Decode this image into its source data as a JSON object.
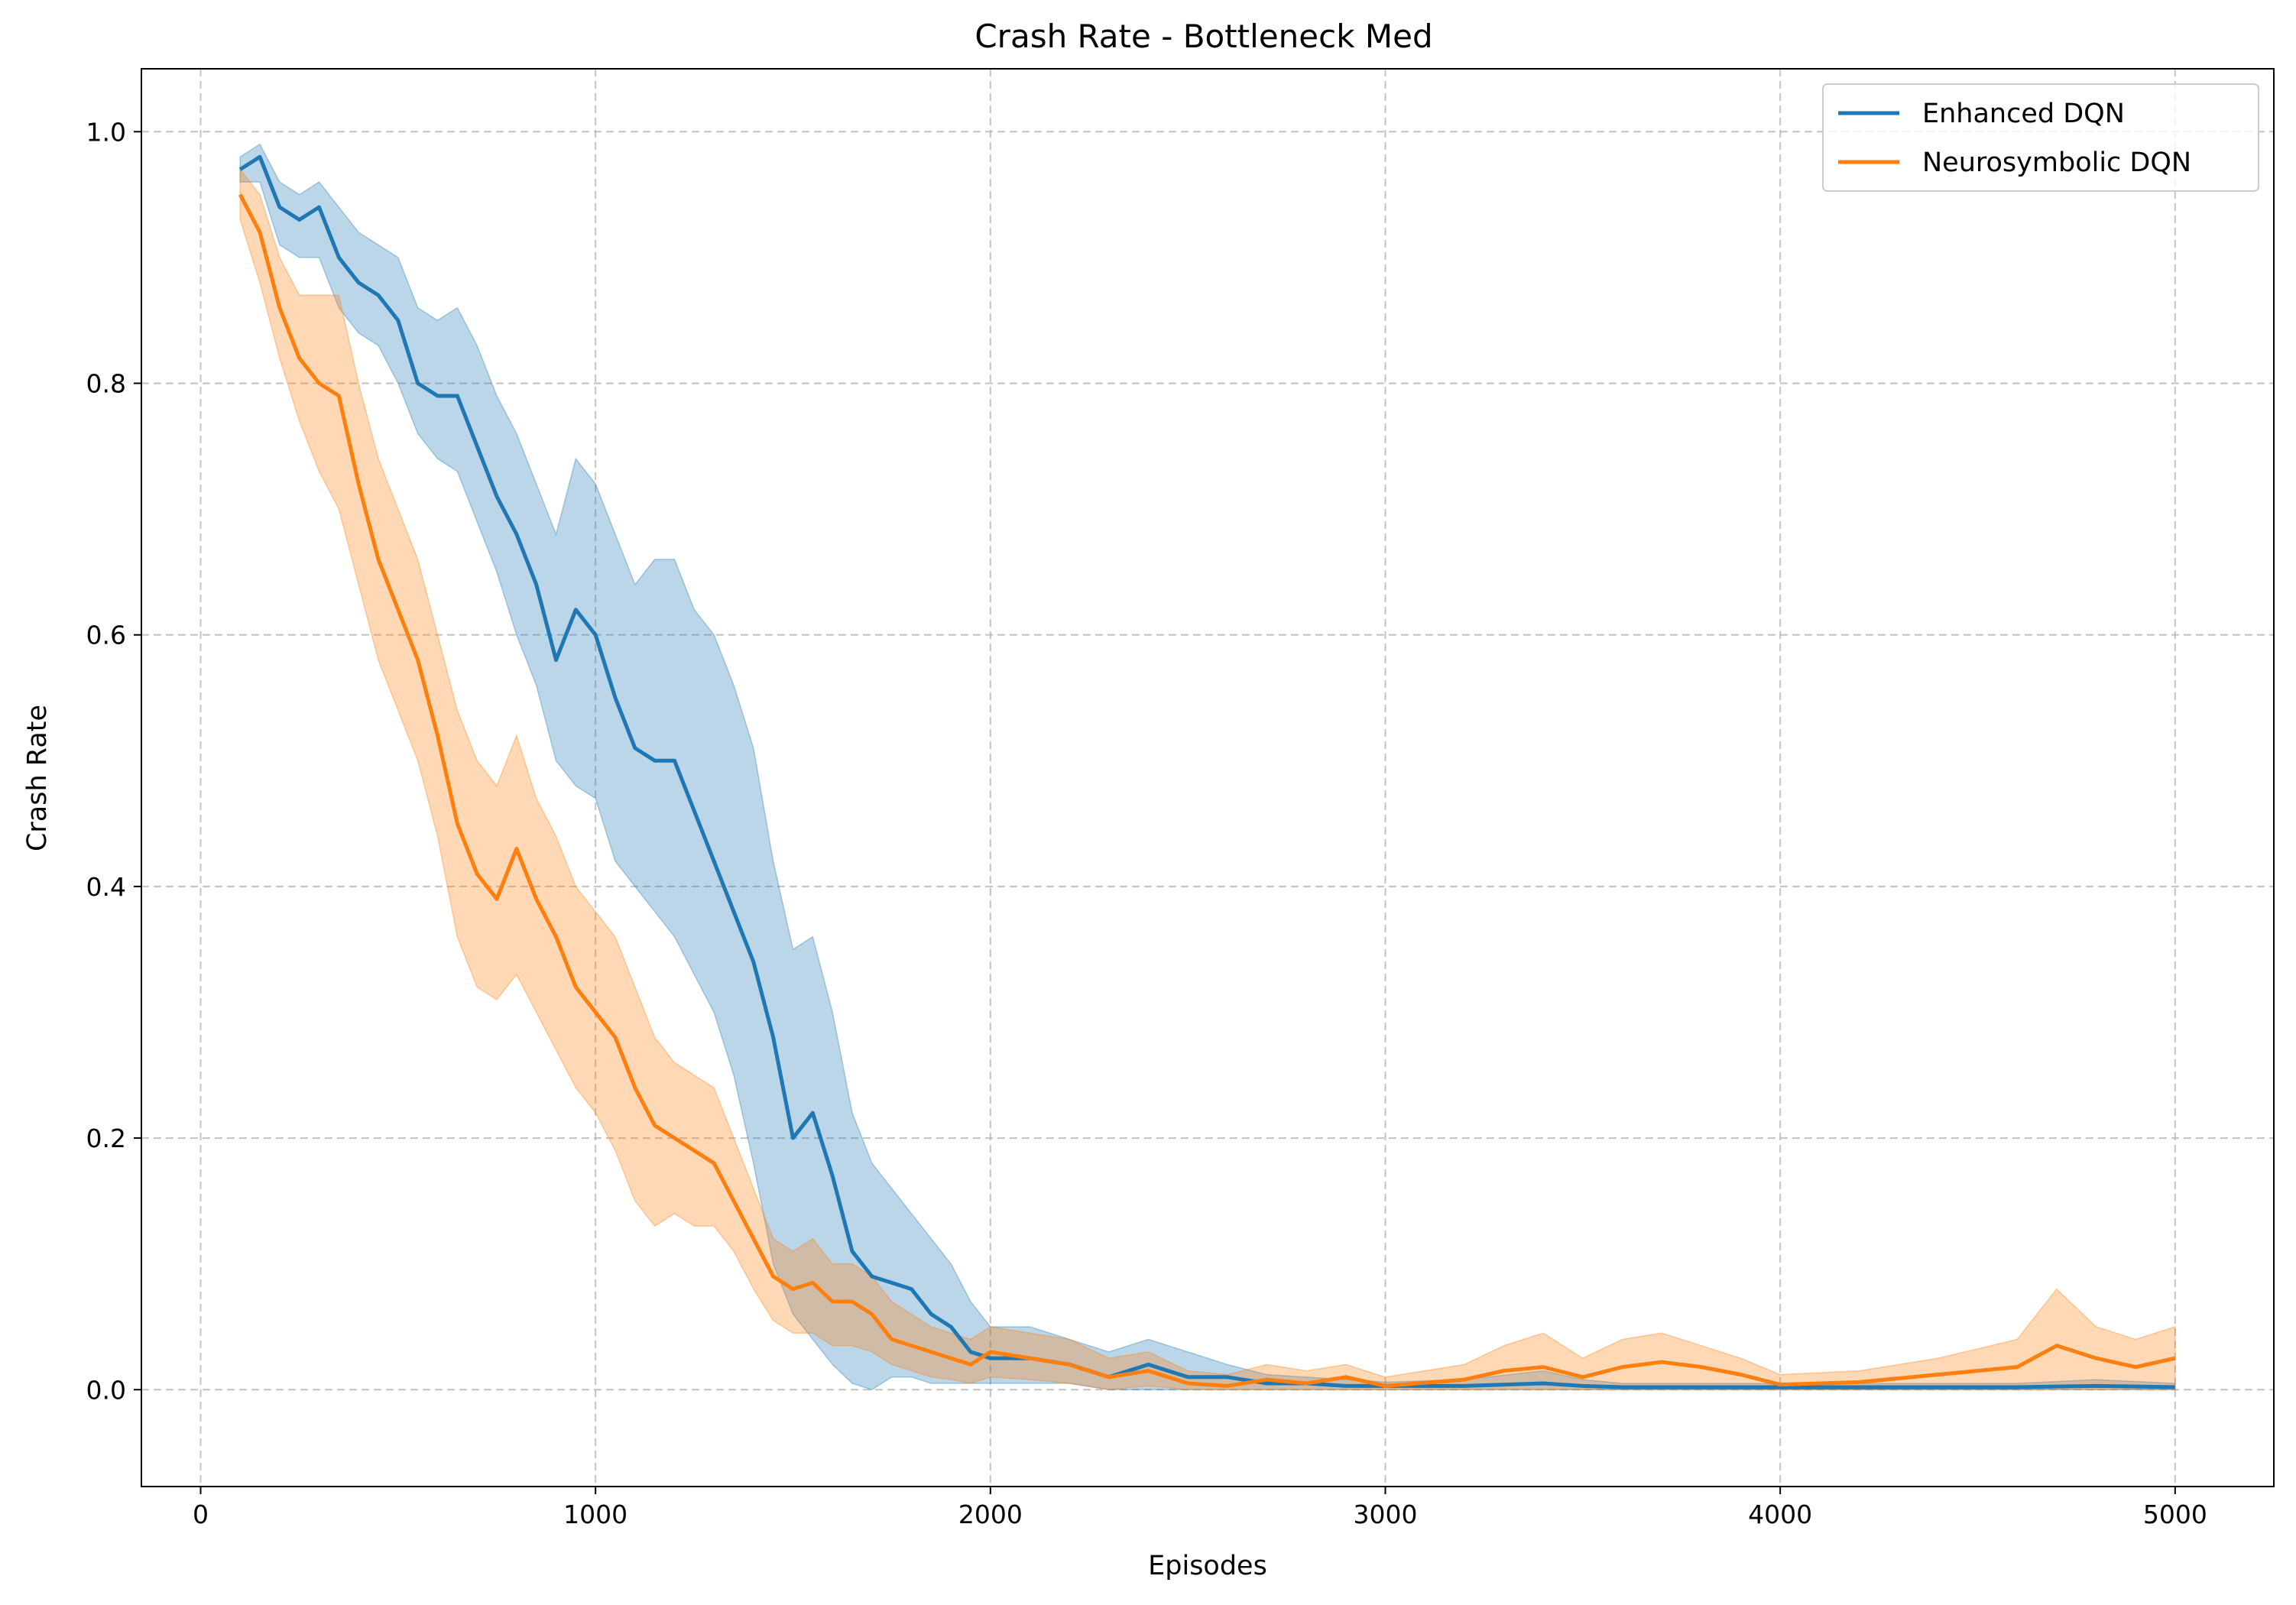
{
  "chart_data": {
    "type": "line",
    "title": "Crash Rate - Bottleneck Med",
    "xlabel": "Episodes",
    "ylabel": "Crash Rate",
    "xlim": [
      -150,
      5250
    ],
    "ylim": [
      -0.077,
      1.05
    ],
    "xticks": [
      0,
      1000,
      2000,
      3000,
      4000,
      5000
    ],
    "xtick_labels": [
      "0",
      "1000",
      "2000",
      "3000",
      "4000",
      "5000"
    ],
    "yticks": [
      0.0,
      0.2,
      0.4,
      0.6,
      0.8,
      1.0
    ],
    "ytick_labels": [
      "0.0",
      "0.2",
      "0.4",
      "0.6",
      "0.8",
      "1.0"
    ],
    "grid": true,
    "legend_position": "top-right",
    "series": [
      {
        "name": "Enhanced DQN",
        "color": "#1f77b4",
        "x": [
          100,
          150,
          200,
          250,
          300,
          350,
          400,
          450,
          500,
          550,
          600,
          650,
          700,
          750,
          800,
          850,
          900,
          950,
          1000,
          1050,
          1100,
          1150,
          1200,
          1250,
          1300,
          1350,
          1400,
          1450,
          1500,
          1550,
          1600,
          1650,
          1700,
          1750,
          1800,
          1850,
          1900,
          1950,
          2000,
          2100,
          2200,
          2300,
          2400,
          2500,
          2600,
          2700,
          2800,
          2900,
          3000,
          3200,
          3400,
          3500,
          3600,
          3800,
          4000,
          4200,
          4400,
          4600,
          4800,
          5000
        ],
        "y": [
          0.97,
          0.98,
          0.94,
          0.93,
          0.94,
          0.9,
          0.88,
          0.87,
          0.85,
          0.8,
          0.79,
          0.79,
          0.75,
          0.71,
          0.68,
          0.64,
          0.58,
          0.62,
          0.6,
          0.55,
          0.51,
          0.5,
          0.5,
          0.46,
          0.42,
          0.38,
          0.34,
          0.28,
          0.2,
          0.22,
          0.17,
          0.11,
          0.09,
          0.085,
          0.08,
          0.06,
          0.05,
          0.03,
          0.025,
          0.025,
          0.02,
          0.01,
          0.02,
          0.01,
          0.01,
          0.005,
          0.005,
          0.003,
          0.003,
          0.003,
          0.005,
          0.003,
          0.002,
          0.002,
          0.002,
          0.002,
          0.002,
          0.002,
          0.003,
          0.002
        ],
        "lower": [
          0.96,
          0.96,
          0.91,
          0.9,
          0.9,
          0.86,
          0.84,
          0.83,
          0.8,
          0.76,
          0.74,
          0.73,
          0.69,
          0.65,
          0.6,
          0.56,
          0.5,
          0.48,
          0.47,
          0.42,
          0.4,
          0.38,
          0.36,
          0.33,
          0.3,
          0.25,
          0.18,
          0.1,
          0.06,
          0.04,
          0.02,
          0.005,
          0.0,
          0.01,
          0.01,
          0.005,
          0.005,
          0.005,
          0.005,
          0.005,
          0.005,
          0.0,
          0.0,
          0.0,
          0.0,
          0.0,
          0.0,
          0.0,
          0.0,
          0.0,
          0.0,
          0.0,
          0.0,
          0.0,
          0.0,
          0.0,
          0.0,
          0.0,
          0.0,
          0.0
        ],
        "upper": [
          0.98,
          0.99,
          0.96,
          0.95,
          0.96,
          0.94,
          0.92,
          0.91,
          0.9,
          0.86,
          0.85,
          0.86,
          0.83,
          0.79,
          0.76,
          0.72,
          0.68,
          0.74,
          0.72,
          0.68,
          0.64,
          0.66,
          0.66,
          0.62,
          0.6,
          0.56,
          0.51,
          0.42,
          0.35,
          0.36,
          0.3,
          0.22,
          0.18,
          0.16,
          0.14,
          0.12,
          0.1,
          0.07,
          0.05,
          0.05,
          0.04,
          0.03,
          0.04,
          0.03,
          0.02,
          0.012,
          0.01,
          0.008,
          0.006,
          0.008,
          0.015,
          0.008,
          0.005,
          0.005,
          0.005,
          0.005,
          0.005,
          0.005,
          0.008,
          0.005
        ]
      },
      {
        "name": "Neurosymbolic DQN",
        "color": "#ff7f0e",
        "x": [
          100,
          150,
          200,
          250,
          300,
          350,
          400,
          450,
          500,
          550,
          600,
          650,
          700,
          750,
          800,
          850,
          900,
          950,
          1000,
          1050,
          1100,
          1150,
          1200,
          1250,
          1300,
          1350,
          1400,
          1450,
          1500,
          1550,
          1600,
          1650,
          1700,
          1750,
          1800,
          1850,
          1900,
          1950,
          2000,
          2100,
          2200,
          2300,
          2400,
          2500,
          2600,
          2700,
          2800,
          2900,
          3000,
          3200,
          3300,
          3400,
          3500,
          3600,
          3700,
          3800,
          3900,
          4000,
          4200,
          4400,
          4600,
          4700,
          4800,
          4900,
          5000
        ],
        "y": [
          0.95,
          0.92,
          0.86,
          0.82,
          0.8,
          0.79,
          0.72,
          0.66,
          0.62,
          0.58,
          0.52,
          0.45,
          0.41,
          0.39,
          0.43,
          0.39,
          0.36,
          0.32,
          0.3,
          0.28,
          0.24,
          0.21,
          0.2,
          0.19,
          0.18,
          0.15,
          0.12,
          0.09,
          0.08,
          0.085,
          0.07,
          0.07,
          0.06,
          0.04,
          0.035,
          0.03,
          0.025,
          0.02,
          0.03,
          0.025,
          0.02,
          0.01,
          0.015,
          0.005,
          0.003,
          0.008,
          0.005,
          0.01,
          0.003,
          0.008,
          0.015,
          0.018,
          0.01,
          0.018,
          0.022,
          0.018,
          0.012,
          0.004,
          0.006,
          0.012,
          0.018,
          0.035,
          0.025,
          0.018,
          0.025
        ],
        "lower": [
          0.93,
          0.88,
          0.82,
          0.77,
          0.73,
          0.7,
          0.64,
          0.58,
          0.54,
          0.5,
          0.44,
          0.36,
          0.32,
          0.31,
          0.33,
          0.3,
          0.27,
          0.24,
          0.22,
          0.19,
          0.15,
          0.13,
          0.14,
          0.13,
          0.13,
          0.11,
          0.08,
          0.055,
          0.045,
          0.045,
          0.035,
          0.035,
          0.03,
          0.02,
          0.015,
          0.01,
          0.008,
          0.005,
          0.01,
          0.008,
          0.005,
          0.0,
          0.003,
          0.0,
          0.0,
          0.0,
          0.0,
          0.0,
          0.0,
          0.0,
          0.0,
          0.0,
          0.0,
          0.0,
          0.0,
          0.0,
          0.0,
          0.0,
          0.0,
          0.0,
          0.0,
          0.0,
          0.0,
          0.0,
          0.0
        ],
        "upper": [
          0.97,
          0.95,
          0.9,
          0.87,
          0.87,
          0.87,
          0.8,
          0.74,
          0.7,
          0.66,
          0.6,
          0.54,
          0.5,
          0.48,
          0.52,
          0.47,
          0.44,
          0.4,
          0.38,
          0.36,
          0.32,
          0.28,
          0.26,
          0.25,
          0.24,
          0.2,
          0.16,
          0.12,
          0.11,
          0.12,
          0.1,
          0.1,
          0.09,
          0.07,
          0.06,
          0.05,
          0.045,
          0.04,
          0.05,
          0.045,
          0.04,
          0.025,
          0.03,
          0.015,
          0.012,
          0.02,
          0.015,
          0.02,
          0.01,
          0.02,
          0.035,
          0.045,
          0.025,
          0.04,
          0.045,
          0.035,
          0.025,
          0.012,
          0.015,
          0.025,
          0.04,
          0.08,
          0.05,
          0.04,
          0.05
        ]
      }
    ]
  }
}
